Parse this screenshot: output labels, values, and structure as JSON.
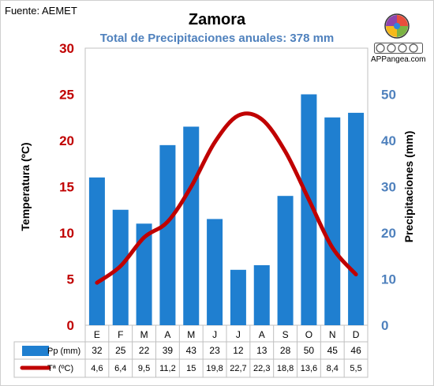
{
  "source": "Fuente: AEMET",
  "brand": "APPangea.com",
  "colors": {
    "bars": "#1f7fd0",
    "line": "#c00000",
    "left_axis": "#c00000",
    "right_axis": "#4f81bd",
    "subtitle": "#4f81bd"
  },
  "icons": {
    "logo": "puzzle-globe-logo",
    "license": "creative-commons-badge"
  },
  "chart_data": {
    "type": "bar+line",
    "title": "Zamora",
    "subtitle": "Total de Precipitaciones anuales: 378 mm",
    "categories": [
      "E",
      "F",
      "M",
      "A",
      "M",
      "J",
      "J",
      "A",
      "S",
      "O",
      "N",
      "D"
    ],
    "left_axis": {
      "label": "Temperatura (ºC)",
      "range": [
        0,
        30
      ],
      "ticks": [
        "0",
        "5",
        "10",
        "15",
        "20",
        "25",
        "30"
      ]
    },
    "right_axis": {
      "label": "Precipitaciones (mm)",
      "range": [
        0,
        60
      ],
      "ticks": [
        "0",
        "10",
        "20",
        "30",
        "40",
        "50"
      ]
    },
    "series": [
      {
        "name": "Pp (mm)",
        "type": "bar",
        "axis": "right",
        "values": [
          32,
          25,
          22,
          39,
          43,
          23,
          12,
          13,
          28,
          50,
          45,
          46
        ],
        "labels": [
          "32",
          "25",
          "22",
          "39",
          "43",
          "23",
          "12",
          "13",
          "28",
          "50",
          "45",
          "46"
        ]
      },
      {
        "name": "Tª (ºC)",
        "type": "line",
        "axis": "left",
        "values": [
          4.6,
          6.4,
          9.5,
          11.2,
          15,
          19.8,
          22.7,
          22.3,
          18.8,
          13.6,
          8.4,
          5.5
        ],
        "labels": [
          "4,6",
          "6,4",
          "9,5",
          "11,2",
          "15",
          "19,8",
          "22,7",
          "22,3",
          "18,8",
          "13,6",
          "8,4",
          "5,5"
        ]
      }
    ],
    "grid": false,
    "legend": "data-table-bottom"
  }
}
